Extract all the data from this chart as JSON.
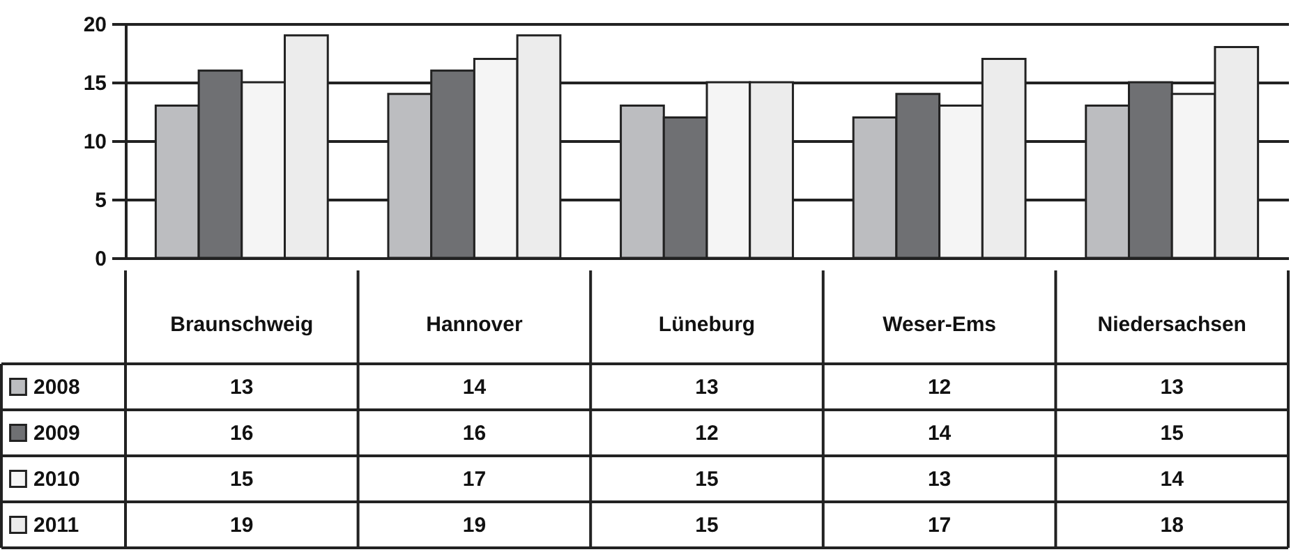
{
  "chart_data": {
    "type": "bar",
    "categories": [
      "Braunschweig",
      "Hannover",
      "Lüneburg",
      "Weser-Ems",
      "Niedersachsen"
    ],
    "series": [
      {
        "name": "2008",
        "color": "#bcbdc0",
        "values": [
          13,
          14,
          13,
          12,
          13
        ]
      },
      {
        "name": "2009",
        "color": "#6f7073",
        "values": [
          16,
          16,
          12,
          14,
          15
        ]
      },
      {
        "name": "2010",
        "color": "#f5f5f5",
        "values": [
          15,
          17,
          15,
          13,
          14
        ]
      },
      {
        "name": "2011",
        "color": "#ececec",
        "values": [
          19,
          19,
          15,
          17,
          18
        ]
      }
    ],
    "ylim": [
      0,
      20
    ],
    "yticks": [
      0,
      5,
      10,
      15,
      20
    ],
    "grid": "y",
    "legend": "bottom left",
    "data_labels": true
  }
}
